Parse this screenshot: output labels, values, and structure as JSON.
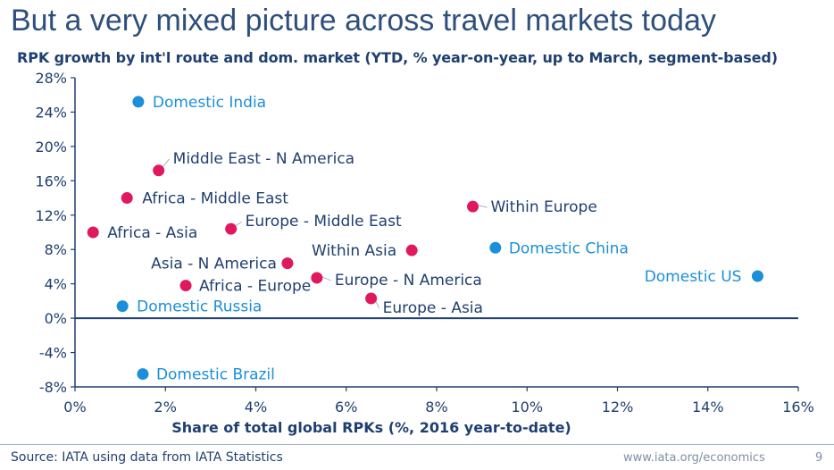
{
  "slide": {
    "title": "But a very mixed picture across travel markets today",
    "source": "Source: IATA using data from IATA Statistics",
    "url": "www.iata.org/economics",
    "page_number": "9"
  },
  "colors": {
    "international": "#e0185e",
    "domestic": "#1b8fd8",
    "international_label": "#1f3f70",
    "domestic_label": "#1b8fd8",
    "axis": "#1f3f70"
  },
  "chart_data": {
    "type": "scatter",
    "title": "RPK growth by int'l route and dom. market (YTD, % year-on-year, up to March, segment-based)",
    "xlabel": "Share of total global RPKs (%, 2016 year-to-date)",
    "ylabel": "",
    "xlim": [
      0,
      16
    ],
    "ylim": [
      -8,
      28
    ],
    "x_ticks": [
      "0%",
      "2%",
      "4%",
      "6%",
      "8%",
      "10%",
      "12%",
      "14%",
      "16%"
    ],
    "y_ticks": [
      "28%",
      "24%",
      "20%",
      "16%",
      "12%",
      "8%",
      "4%",
      "0%",
      "-4%",
      "-8%"
    ],
    "grid": false,
    "series": [
      {
        "key": "international",
        "points": [
          {
            "label": "Middle East - N America",
            "x": 1.85,
            "y": 17.2
          },
          {
            "label": "Africa - Middle East",
            "x": 1.15,
            "y": 14.0
          },
          {
            "label": "Africa - Asia",
            "x": 0.4,
            "y": 10.0
          },
          {
            "label": "Europe - Middle East",
            "x": 3.45,
            "y": 10.4
          },
          {
            "label": "Asia - N America",
            "x": 4.7,
            "y": 6.4
          },
          {
            "label": "Africa - Europe",
            "x": 2.45,
            "y": 3.8
          },
          {
            "label": "Europe - N America",
            "x": 5.35,
            "y": 4.7
          },
          {
            "label": "Europe - Asia",
            "x": 6.55,
            "y": 2.3
          },
          {
            "label": "Within Asia",
            "x": 7.45,
            "y": 7.9
          },
          {
            "label": "Within Europe",
            "x": 8.8,
            "y": 13.0
          }
        ]
      },
      {
        "key": "domestic",
        "points": [
          {
            "label": "Domestic India",
            "x": 1.4,
            "y": 25.2
          },
          {
            "label": "Domestic Russia",
            "x": 1.05,
            "y": 1.4
          },
          {
            "label": "Domestic Brazil",
            "x": 1.5,
            "y": -6.5
          },
          {
            "label": "Domestic China",
            "x": 9.3,
            "y": 8.2
          },
          {
            "label": "Domestic US",
            "x": 15.1,
            "y": 4.9
          }
        ]
      }
    ]
  }
}
